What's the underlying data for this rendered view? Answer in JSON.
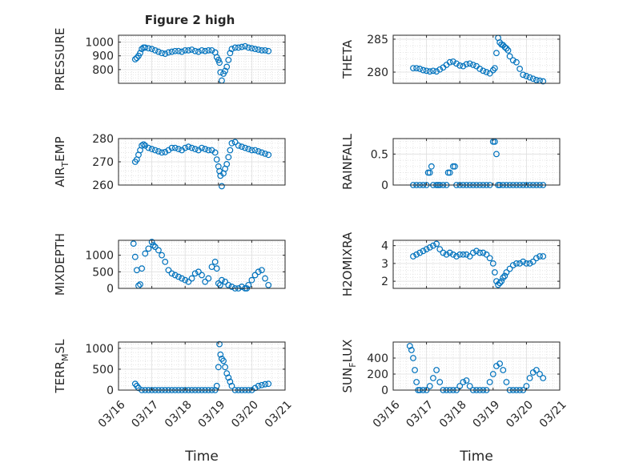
{
  "figure": {
    "title": "Figure 2 high",
    "xlabel": "Time",
    "marker_color": "#0072BD",
    "grid": true,
    "minor_grid": true
  },
  "chart_data": [
    {
      "id": "pressure",
      "type": "scatter",
      "ylabel": "PRESSURE",
      "xlim": [
        0,
        5
      ],
      "ylim": [
        700,
        1050
      ],
      "yticks": [
        800,
        900,
        1000
      ],
      "xticks": [
        0,
        1,
        2,
        3,
        4,
        5
      ],
      "xticklabels": [],
      "x": [
        0.5,
        0.55,
        0.6,
        0.65,
        0.7,
        0.75,
        0.8,
        0.9,
        1,
        1.1,
        1.2,
        1.3,
        1.4,
        1.5,
        1.6,
        1.7,
        1.8,
        1.9,
        2,
        2.1,
        2.2,
        2.3,
        2.4,
        2.5,
        2.6,
        2.7,
        2.8,
        2.9,
        2.95,
        3,
        3.03,
        3.06,
        3.1,
        3.15,
        3.2,
        3.25,
        3.3,
        3.35,
        3.4,
        3.5,
        3.6,
        3.7,
        3.8,
        3.9,
        4,
        4.1,
        4.2,
        4.3,
        4.4,
        4.5
      ],
      "y": [
        875,
        885,
        900,
        920,
        950,
        960,
        960,
        955,
        950,
        940,
        930,
        920,
        915,
        925,
        930,
        935,
        935,
        930,
        940,
        940,
        945,
        935,
        930,
        940,
        935,
        940,
        940,
        925,
        890,
        870,
        850,
        780,
        720,
        770,
        790,
        820,
        870,
        920,
        950,
        960,
        960,
        965,
        970,
        960,
        955,
        950,
        945,
        940,
        940,
        935
      ]
    },
    {
      "id": "theta",
      "type": "scatter",
      "ylabel": "THETA",
      "xlim": [
        0,
        5
      ],
      "ylim": [
        278.3,
        285.6
      ],
      "yticks": [
        280,
        285
      ],
      "xticks": [
        0,
        1,
        2,
        3,
        4,
        5
      ],
      "xticklabels": [],
      "x": [
        0.6,
        0.7,
        0.8,
        0.9,
        1,
        1.1,
        1.2,
        1.3,
        1.4,
        1.5,
        1.6,
        1.7,
        1.8,
        1.9,
        2,
        2.1,
        2.2,
        2.3,
        2.4,
        2.5,
        2.6,
        2.7,
        2.8,
        2.9,
        3,
        3.05,
        3.1,
        3.15,
        3.2,
        3.25,
        3.3,
        3.35,
        3.4,
        3.45,
        3.5,
        3.6,
        3.7,
        3.8,
        3.9,
        4,
        4.1,
        4.2,
        4.3,
        4.4,
        4.5
      ],
      "y": [
        280.6,
        280.6,
        280.5,
        280.3,
        280.2,
        280.1,
        280.2,
        280.1,
        280.4,
        280.7,
        281.1,
        281.5,
        281.6,
        281.3,
        281.0,
        280.9,
        281.2,
        281.3,
        281.1,
        280.9,
        280.5,
        280.2,
        280.0,
        279.8,
        280.3,
        280.6,
        282.9,
        285.2,
        284.5,
        284.2,
        284.1,
        283.8,
        283.6,
        283.3,
        282.4,
        281.8,
        281.5,
        280.5,
        279.6,
        279.4,
        279.2,
        279.0,
        278.8,
        278.7,
        278.6
      ]
    },
    {
      "id": "air_temp",
      "type": "scatter",
      "ylabel": "AIR_TEMP",
      "ylabel_text": "AIR",
      "ylabel_sub": "T",
      "ylabel_tail": "EMP",
      "xlim": [
        0,
        5
      ],
      "ylim": [
        260,
        280
      ],
      "yticks": [
        260,
        270,
        280
      ],
      "xticks": [
        0,
        1,
        2,
        3,
        4,
        5
      ],
      "xticklabels": [],
      "x": [
        0.5,
        0.55,
        0.6,
        0.65,
        0.7,
        0.75,
        0.8,
        0.9,
        1,
        1.1,
        1.2,
        1.3,
        1.4,
        1.5,
        1.6,
        1.7,
        1.8,
        1.9,
        2,
        2.1,
        2.2,
        2.3,
        2.4,
        2.5,
        2.6,
        2.7,
        2.8,
        2.9,
        2.95,
        3,
        3.03,
        3.06,
        3.1,
        3.15,
        3.2,
        3.25,
        3.3,
        3.35,
        3.4,
        3.5,
        3.6,
        3.7,
        3.8,
        3.9,
        4,
        4.1,
        4.2,
        4.3,
        4.4,
        4.5
      ],
      "y": [
        270,
        271,
        273,
        275,
        277,
        277.5,
        277,
        276,
        275.5,
        275,
        274.5,
        274,
        274.2,
        275,
        276,
        276,
        275.5,
        275,
        276,
        276.5,
        276,
        275.5,
        275,
        276,
        275.5,
        275,
        275,
        274,
        271,
        268,
        266,
        264,
        259.5,
        265,
        267,
        269,
        272,
        275,
        278,
        278.5,
        277,
        276.5,
        276,
        275.5,
        275,
        275,
        274.5,
        274,
        273.5,
        273
      ]
    },
    {
      "id": "rainfall",
      "type": "scatter",
      "ylabel": "RAINFALL",
      "xlim": [
        0,
        5
      ],
      "ylim": [
        0,
        0.75
      ],
      "yticks": [
        0,
        0.5
      ],
      "xticks": [
        0,
        1,
        2,
        3,
        4,
        5
      ],
      "xticklabels": [],
      "x": [
        0.6,
        0.7,
        0.8,
        0.9,
        1,
        1.05,
        1.1,
        1.15,
        1.2,
        1.3,
        1.35,
        1.4,
        1.5,
        1.6,
        1.65,
        1.7,
        1.8,
        1.85,
        1.9,
        2,
        2.1,
        2.2,
        2.3,
        2.4,
        2.5,
        2.6,
        2.7,
        2.8,
        2.9,
        3,
        3.05,
        3.1,
        3.15,
        3.2,
        3.3,
        3.4,
        3.5,
        3.6,
        3.7,
        3.8,
        3.9,
        4,
        4.1,
        4.2,
        4.3,
        4.4,
        4.5
      ],
      "y": [
        0,
        0,
        0,
        0,
        0,
        0.2,
        0.2,
        0.3,
        0,
        0,
        0,
        0,
        0,
        0,
        0.2,
        0.2,
        0.3,
        0.3,
        0,
        0,
        0,
        0,
        0,
        0,
        0,
        0,
        0,
        0,
        0,
        0.7,
        0.7,
        0.5,
        0,
        0,
        0,
        0,
        0,
        0,
        0,
        0,
        0,
        0,
        0,
        0,
        0,
        0,
        0
      ]
    },
    {
      "id": "mixdepth",
      "type": "scatter",
      "ylabel": "MIXDEPTH",
      "xlim": [
        0,
        5
      ],
      "ylim": [
        0,
        1450
      ],
      "yticks": [
        0,
        500,
        1000
      ],
      "xticks": [
        0,
        1,
        2,
        3,
        4,
        5
      ],
      "xticklabels": [],
      "x": [
        0.45,
        0.5,
        0.55,
        0.6,
        0.65,
        0.7,
        0.8,
        0.9,
        1,
        1.05,
        1.1,
        1.2,
        1.3,
        1.4,
        1.5,
        1.6,
        1.7,
        1.8,
        1.9,
        2,
        2.1,
        2.2,
        2.3,
        2.4,
        2.5,
        2.6,
        2.7,
        2.8,
        2.9,
        2.95,
        3,
        3.05,
        3.1,
        3.2,
        3.3,
        3.4,
        3.5,
        3.6,
        3.7,
        3.8,
        3.85,
        3.9,
        4,
        4.1,
        4.2,
        4.3,
        4.4,
        4.5
      ],
      "y": [
        1350,
        950,
        550,
        80,
        120,
        600,
        1050,
        1200,
        1400,
        1300,
        1250,
        1150,
        1000,
        800,
        550,
        450,
        400,
        350,
        300,
        250,
        200,
        300,
        450,
        500,
        400,
        200,
        300,
        650,
        800,
        600,
        150,
        100,
        250,
        200,
        100,
        50,
        0,
        0,
        50,
        0,
        0,
        100,
        250,
        400,
        500,
        550,
        300,
        100
      ]
    },
    {
      "id": "h2omixra",
      "type": "scatter",
      "ylabel": "H2OMIXRA",
      "xlim": [
        0,
        5
      ],
      "ylim": [
        1.6,
        4.3
      ],
      "yticks": [
        2,
        3,
        4
      ],
      "xticks": [
        0,
        1,
        2,
        3,
        4,
        5
      ],
      "xticklabels": [],
      "x": [
        0.6,
        0.7,
        0.8,
        0.9,
        1,
        1.1,
        1.2,
        1.3,
        1.4,
        1.5,
        1.6,
        1.7,
        1.8,
        1.9,
        2,
        2.1,
        2.2,
        2.3,
        2.4,
        2.5,
        2.6,
        2.7,
        2.8,
        2.9,
        3,
        3.05,
        3.1,
        3.15,
        3.2,
        3.25,
        3.3,
        3.35,
        3.4,
        3.5,
        3.6,
        3.7,
        3.8,
        3.9,
        4,
        4.1,
        4.2,
        4.3,
        4.4,
        4.5
      ],
      "y": [
        3.4,
        3.5,
        3.6,
        3.7,
        3.8,
        3.9,
        4.0,
        4.1,
        3.8,
        3.6,
        3.5,
        3.6,
        3.5,
        3.4,
        3.5,
        3.5,
        3.5,
        3.4,
        3.6,
        3.7,
        3.6,
        3.6,
        3.5,
        3.3,
        3.0,
        2.5,
        2.0,
        1.8,
        1.9,
        2.0,
        2.2,
        2.3,
        2.5,
        2.7,
        2.9,
        3.0,
        3.0,
        3.1,
        3.0,
        3.0,
        3.1,
        3.3,
        3.4,
        3.4
      ]
    },
    {
      "id": "terr_msl",
      "type": "scatter",
      "ylabel": "TERR_MSL",
      "ylabel_text": "TERR",
      "ylabel_sub": "M",
      "ylabel_tail": "SL",
      "xlim": [
        0,
        5
      ],
      "ylim": [
        0,
        1150
      ],
      "yticks": [
        0,
        500,
        1000
      ],
      "xticks": [
        0,
        1,
        2,
        3,
        4,
        5
      ],
      "xticklabels": [
        "03/16",
        "03/17",
        "03/18",
        "03/19",
        "03/20",
        "03/21"
      ],
      "x": [
        0.5,
        0.55,
        0.6,
        0.7,
        0.8,
        0.9,
        1,
        1.1,
        1.2,
        1.3,
        1.4,
        1.5,
        1.6,
        1.7,
        1.8,
        1.9,
        2,
        2.1,
        2.2,
        2.3,
        2.4,
        2.5,
        2.6,
        2.7,
        2.8,
        2.9,
        2.95,
        3,
        3.03,
        3.06,
        3.1,
        3.15,
        3.2,
        3.25,
        3.3,
        3.35,
        3.4,
        3.5,
        3.6,
        3.7,
        3.8,
        3.9,
        4,
        4.1,
        4.2,
        4.3,
        4.4,
        4.5
      ],
      "y": [
        150,
        100,
        50,
        0,
        0,
        0,
        0,
        0,
        0,
        0,
        0,
        0,
        0,
        0,
        0,
        0,
        0,
        0,
        0,
        0,
        0,
        0,
        0,
        0,
        0,
        0,
        100,
        550,
        1100,
        850,
        750,
        700,
        550,
        400,
        300,
        200,
        100,
        0,
        0,
        0,
        0,
        0,
        0,
        50,
        100,
        120,
        140,
        150
      ]
    },
    {
      "id": "sun_flux",
      "type": "scatter",
      "ylabel": "SUN_FLUX",
      "ylabel_text": "SUN",
      "ylabel_sub": "F",
      "ylabel_tail": "LUX",
      "xlim": [
        0,
        5
      ],
      "ylim": [
        0,
        600
      ],
      "yticks": [
        0,
        200,
        400
      ],
      "xticks": [
        0,
        1,
        2,
        3,
        4,
        5
      ],
      "xticklabels": [
        "03/16",
        "03/17",
        "03/18",
        "03/19",
        "03/20",
        "03/21"
      ],
      "x": [
        0.5,
        0.55,
        0.6,
        0.65,
        0.7,
        0.75,
        0.8,
        0.9,
        1,
        1.1,
        1.2,
        1.3,
        1.4,
        1.5,
        1.6,
        1.7,
        1.8,
        1.9,
        2,
        2.1,
        2.2,
        2.3,
        2.4,
        2.5,
        2.6,
        2.7,
        2.8,
        2.9,
        3,
        3.1,
        3.2,
        3.3,
        3.4,
        3.5,
        3.6,
        3.7,
        3.8,
        3.9,
        4,
        4.1,
        4.2,
        4.3,
        4.4,
        4.5
      ],
      "y": [
        550,
        500,
        400,
        250,
        100,
        0,
        0,
        0,
        0,
        50,
        150,
        250,
        100,
        0,
        0,
        0,
        0,
        0,
        50,
        100,
        120,
        50,
        0,
        0,
        0,
        0,
        0,
        100,
        200,
        300,
        330,
        250,
        100,
        0,
        0,
        0,
        0,
        0,
        50,
        150,
        220,
        250,
        200,
        150
      ]
    }
  ]
}
